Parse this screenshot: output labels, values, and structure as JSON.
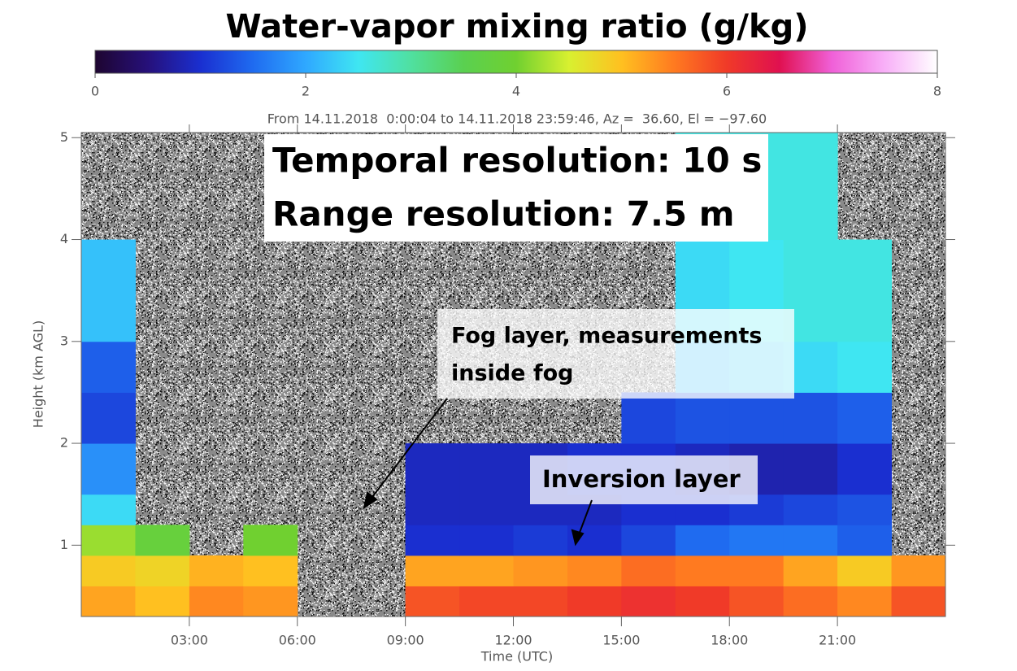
{
  "chart_data": {
    "type": "heatmap",
    "title": "Water-vapor mixing ratio (g/kg)",
    "subtitle": "From 14.11.2018  0:00:04 to 14.11.2018 23:59:46, Az =  36.60, El = −97.60",
    "x_label": "Time (UTC)",
    "y_label": "Height (km AGL)",
    "xlim": [
      0,
      24
    ],
    "ylim": [
      0.3,
      5.05
    ],
    "xticks": [
      {
        "value": 3,
        "label": "03:00"
      },
      {
        "value": 6,
        "label": "06:00"
      },
      {
        "value": 9,
        "label": "09:00"
      },
      {
        "value": 12,
        "label": "12:00"
      },
      {
        "value": 15,
        "label": "15:00"
      },
      {
        "value": 18,
        "label": "18:00"
      },
      {
        "value": 21,
        "label": "21:00"
      }
    ],
    "yticks": [
      1,
      2,
      3,
      4,
      5
    ],
    "clim": [
      0,
      8
    ],
    "cticks": [
      0,
      2,
      4,
      6,
      8
    ],
    "colorscale": [
      "#1e0530",
      "#26107a",
      "#1a2fd0",
      "#1f6bf0",
      "#2fa8ff",
      "#3fe6f2",
      "#50e0a0",
      "#5ad050",
      "#70d030",
      "#d8f030",
      "#ffc020",
      "#ff7a20",
      "#f03a28",
      "#e01050",
      "#f060d8",
      "#f8b0f8",
      "#ffffff"
    ],
    "x_bins": [
      0,
      1.5,
      3,
      4.5,
      6,
      7.5,
      9,
      10.5,
      12,
      13.5,
      15,
      16.5,
      18,
      19.5,
      21,
      22.5,
      24
    ],
    "y_bins": [
      0.3,
      0.6,
      0.9,
      1.2,
      1.5,
      2,
      2.5,
      3,
      4,
      5.05
    ],
    "values": [
      [
        5.2,
        5.0,
        5.4,
        5.3,
        null,
        null,
        5.8,
        5.9,
        5.9,
        6.0,
        6.1,
        6.0,
        5.8,
        5.6,
        5.4,
        5.8
      ],
      [
        4.9,
        4.8,
        5.1,
        5.0,
        null,
        null,
        5.2,
        5.2,
        5.3,
        5.4,
        5.6,
        5.5,
        5.5,
        5.2,
        4.9,
        5.3
      ],
      [
        4.2,
        3.8,
        null,
        4.0,
        null,
        null,
        1.0,
        1.0,
        1.1,
        1.0,
        1.2,
        1.5,
        1.6,
        1.6,
        1.4,
        null
      ],
      [
        2.4,
        null,
        null,
        null,
        null,
        null,
        0.9,
        0.9,
        0.9,
        0.9,
        1.0,
        1.0,
        1.1,
        1.2,
        1.3,
        null
      ],
      [
        1.8,
        null,
        null,
        null,
        null,
        null,
        0.9,
        0.9,
        0.9,
        1.0,
        1.0,
        0.9,
        0.8,
        0.8,
        1.0,
        null
      ],
      [
        1.2,
        null,
        null,
        null,
        null,
        null,
        null,
        null,
        null,
        null,
        1.2,
        1.3,
        1.3,
        1.3,
        1.4,
        null
      ],
      [
        1.4,
        null,
        null,
        null,
        null,
        null,
        null,
        null,
        null,
        null,
        null,
        2.2,
        2.3,
        2.4,
        2.5,
        null
      ],
      [
        2.2,
        null,
        null,
        null,
        null,
        null,
        null,
        null,
        null,
        null,
        null,
        2.4,
        2.5,
        2.6,
        2.6,
        null
      ],
      [
        null,
        null,
        null,
        null,
        null,
        null,
        null,
        null,
        null,
        null,
        null,
        2.6,
        2.6,
        2.6,
        null,
        null
      ]
    ],
    "annotations": [
      {
        "lines": [
          "Temporal resolution: 10 s",
          "Range resolution: 7.5 m"
        ]
      },
      {
        "lines": [
          "Fog layer, measurements",
          "inside fog"
        ]
      },
      {
        "lines": [
          "Inversion layer"
        ]
      }
    ]
  }
}
